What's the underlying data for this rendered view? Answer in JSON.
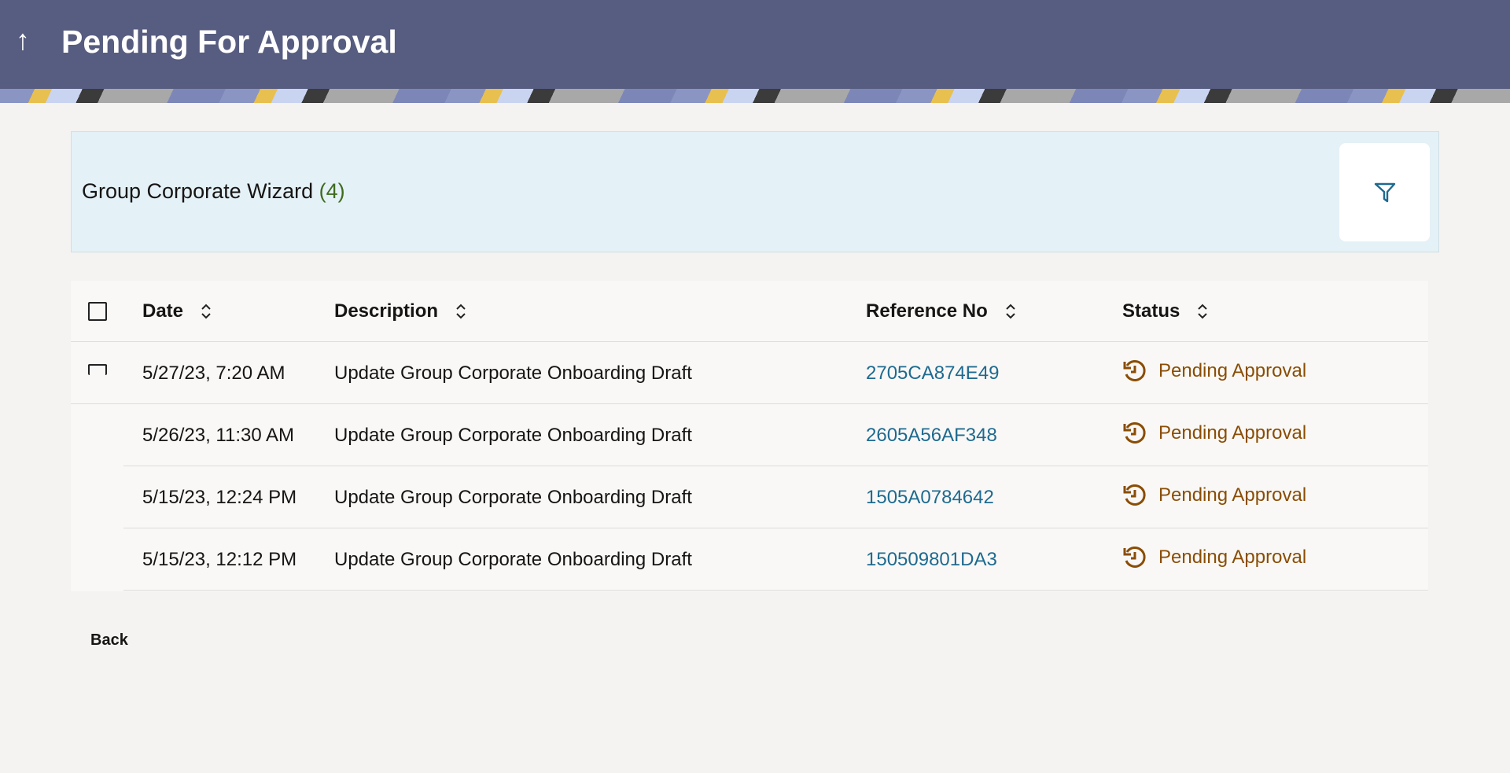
{
  "header": {
    "title": "Pending For Approval",
    "back_icon": "arrow-up-icon"
  },
  "card": {
    "title": "Group Corporate Wizard",
    "count": "(4)",
    "filter_icon": "filter-icon"
  },
  "table": {
    "columns": [
      "Date",
      "Description",
      "Reference No",
      "Status"
    ],
    "rows": [
      {
        "date": "5/27/23, 7:20 AM",
        "description": "Update Group Corporate Onboarding Draft",
        "reference": "2705CA874E49",
        "status": "Pending Approval"
      },
      {
        "date": "5/26/23, 11:30 AM",
        "description": "Update Group Corporate Onboarding Draft",
        "reference": "2605A56AF348",
        "status": "Pending Approval"
      },
      {
        "date": "5/15/23, 12:24 PM",
        "description": "Update Group Corporate Onboarding Draft",
        "reference": "1505A0784642",
        "status": "Pending Approval"
      },
      {
        "date": "5/15/23, 12:12 PM",
        "description": "Update Group Corporate Onboarding Draft",
        "reference": "150509801DA3",
        "status": "Pending Approval"
      }
    ]
  },
  "footer": {
    "back_label": "Back"
  },
  "colors": {
    "header": "#575d80",
    "link": "#1e6a8f",
    "status": "#8a4d05",
    "count": "#3f6b1f"
  }
}
